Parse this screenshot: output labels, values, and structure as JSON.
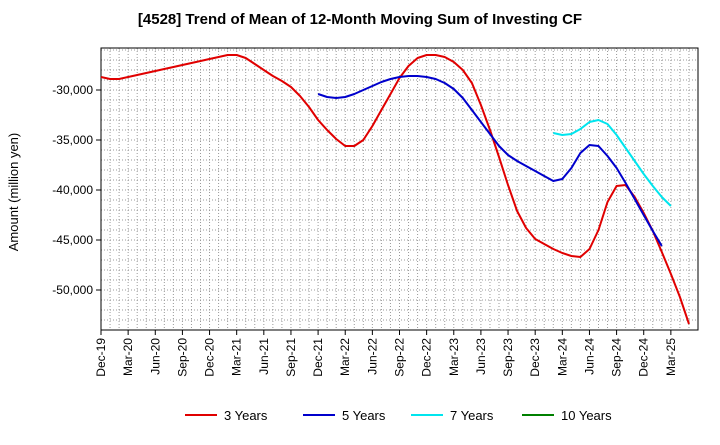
{
  "chart_data": {
    "type": "line",
    "title": "[4528]  Trend of Mean of 12-Month Moving Sum of Investing CF",
    "xlabel": "",
    "ylabel": "Amount (million yen)",
    "ylim": [
      -54000,
      -25800
    ],
    "xlim": [
      0,
      66
    ],
    "grid": true,
    "legend_position": "bottom",
    "x_tick_labels": [
      "Dec-19",
      "Mar-20",
      "Jun-20",
      "Sep-20",
      "Dec-20",
      "Mar-21",
      "Jun-21",
      "Sep-21",
      "Dec-21",
      "Mar-22",
      "Jun-22",
      "Sep-22",
      "Dec-22",
      "Mar-23",
      "Jun-23",
      "Sep-23",
      "Dec-23",
      "Mar-24",
      "Jun-24",
      "Sep-24",
      "Dec-24",
      "Mar-25"
    ],
    "y_ticks": [
      -50000,
      -45000,
      -40000,
      -35000,
      -30000
    ],
    "y_tick_labels": [
      "-50,000",
      "-45,000",
      "-40,000",
      "-35,000",
      "-30,000"
    ],
    "series": [
      {
        "name": "3 Years",
        "color": "#e00000",
        "x_start": 0,
        "values": [
          -28700,
          -28900,
          -28900,
          -28700,
          -28500,
          -28300,
          -28100,
          -27900,
          -27700,
          -27500,
          -27300,
          -27100,
          -26900,
          -26700,
          -26500,
          -26500,
          -26800,
          -27400,
          -28000,
          -28600,
          -29100,
          -29700,
          -30600,
          -31700,
          -33000,
          -34000,
          -34900,
          -35600,
          -35600,
          -35000,
          -33600,
          -32000,
          -30400,
          -28800,
          -27600,
          -26800,
          -26500,
          -26500,
          -26700,
          -27200,
          -28000,
          -29300,
          -31500,
          -34000,
          -36700,
          -39500,
          -42100,
          -43800,
          -44900,
          -45400,
          -45900,
          -46300,
          -46600,
          -46700,
          -45900,
          -44000,
          -41200,
          -39600,
          -39500,
          -40700,
          -42300,
          -44100,
          -46200,
          -48400,
          -50700,
          -53400
        ]
      },
      {
        "name": "5 Years",
        "color": "#0000cc",
        "x_start": 24,
        "values": [
          -30400,
          -30700,
          -30800,
          -30700,
          -30400,
          -30000,
          -29600,
          -29200,
          -28900,
          -28700,
          -28600,
          -28600,
          -28700,
          -28900,
          -29300,
          -29900,
          -30800,
          -32000,
          -33200,
          -34400,
          -35600,
          -36500,
          -37100,
          -37600,
          -38100,
          -38600,
          -39100,
          -38900,
          -37800,
          -36300,
          -35500,
          -35600,
          -36600,
          -37800,
          -39300,
          -40900,
          -42500,
          -44100,
          -45600
        ]
      },
      {
        "name": "7 Years",
        "color": "#00e5ee",
        "x_start": 50,
        "values": [
          -34300,
          -34500,
          -34400,
          -33900,
          -33200,
          -33000,
          -33400,
          -34500,
          -35800,
          -37100,
          -38400,
          -39600,
          -40700,
          -41600
        ]
      },
      {
        "name": "10 Years",
        "color": "#008000",
        "x_start": 0,
        "values": []
      }
    ]
  }
}
